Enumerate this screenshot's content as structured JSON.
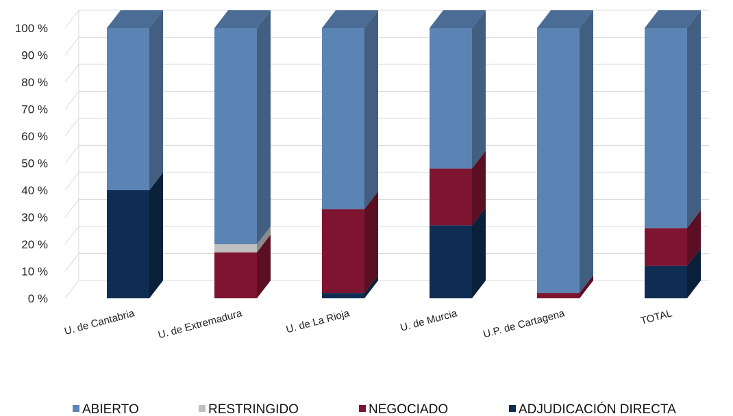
{
  "chart_data": {
    "type": "bar",
    "stacked": true,
    "percent": true,
    "style": "3d-column",
    "categories": [
      "U. de Cantabria",
      "U. de Extremadura",
      "U. de La Rioja",
      "U. de Murcia",
      "U.P. de Cartagena",
      "TOTAL"
    ],
    "series": [
      {
        "name": "ADJUDICACIÓN DIRECTA",
        "color": "#0f2d52",
        "values": [
          40,
          0,
          2,
          27,
          0,
          12
        ]
      },
      {
        "name": "NEGOCIADO",
        "color": "#7e1530",
        "values": [
          0,
          17,
          31,
          21,
          2,
          14
        ]
      },
      {
        "name": "RESTRINGIDO",
        "color": "#c0c0c0",
        "values": [
          0,
          3,
          0,
          0,
          0,
          0
        ]
      },
      {
        "name": "ABIERTO",
        "color": "#5b84b4",
        "values": [
          60,
          80,
          67,
          52,
          98,
          74
        ]
      }
    ],
    "legend_order": [
      "ABIERTO",
      "RESTRINGIDO",
      "NEGOCIADO",
      "ADJUDICACIÓN DIRECTA"
    ],
    "ytick_labels": [
      "0 %",
      "10 %",
      "20 %",
      "30 %",
      "40 %",
      "50 %",
      "60 %",
      "70 %",
      "80 %",
      "90 %",
      "100 %"
    ],
    "ylim": [
      0,
      100
    ],
    "grid": true,
    "legend_position": "bottom"
  }
}
